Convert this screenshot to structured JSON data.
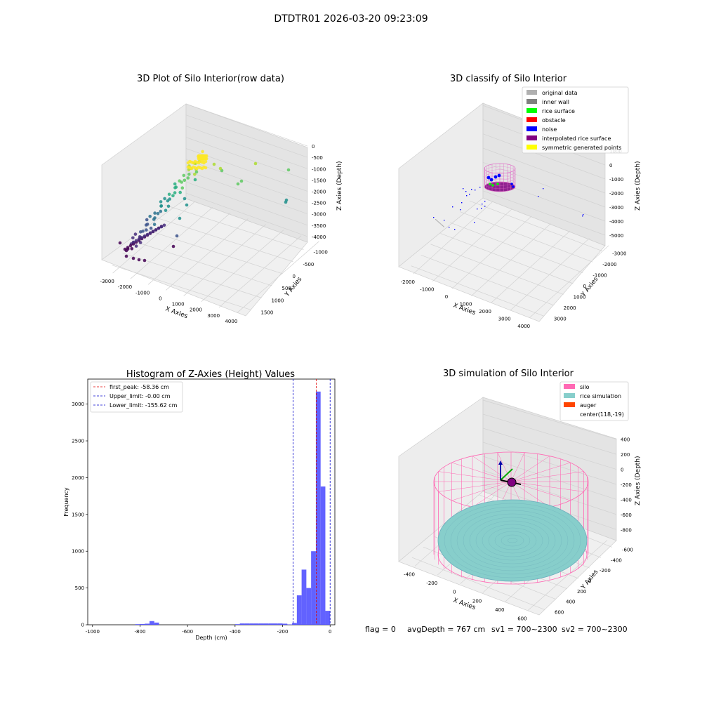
{
  "suptitle": "DTDTR01 2026-03-20 09:23:09",
  "footer": {
    "flag": "flag = 0",
    "avg": "avgDepth = 767 cm",
    "sv1": "sv1 = 700~2300",
    "sv2": "sv2 = 700~2300"
  },
  "colors": {
    "hist_bar": "#5555ff",
    "peak_line": "#e00000",
    "limit_line": "#0000cc",
    "silo": "#ff69b4",
    "rice": "#87cecb",
    "auger": "#ff4500"
  },
  "chart_data": [
    {
      "type": "scatter",
      "subtype": "3d",
      "title": "3D Plot of Silo Interior(row data)",
      "xlabel": "X Axies",
      "ylabel": "Y Axies",
      "zlabel": "Z Axies (Depth)",
      "xticks": [
        "-3000",
        "-2000",
        "-1000",
        "0",
        "1000",
        "2000",
        "3000",
        "4000"
      ],
      "yticks": [
        "-1000",
        "-500",
        "0",
        "500",
        "1000",
        "1500"
      ],
      "zticks": [
        "0",
        "-500",
        "-1000",
        "-1500",
        "-2000",
        "-2500",
        "-3000",
        "-3500",
        "-4000"
      ],
      "colormap": "viridis",
      "grid": true
    },
    {
      "type": "scatter",
      "subtype": "3d",
      "title": "3D classify of Silo Interior",
      "xlabel": "X Axies",
      "ylabel": "Y Axies",
      "zlabel": "Z Axies (Depth)",
      "xticks": [
        "-2000",
        "-1000",
        "0",
        "1000",
        "2000",
        "3000",
        "4000"
      ],
      "yticks": [
        "-3000",
        "-2000",
        "-1000",
        "0",
        "1000",
        "2000",
        "3000"
      ],
      "zticks": [
        "1000",
        "0",
        "-1000",
        "-2000",
        "-3000",
        "-4000",
        "-5000"
      ],
      "legend_position": "top-right",
      "legend": [
        {
          "label": "original data",
          "color": "#b0b0b0"
        },
        {
          "label": "inner wall",
          "color": "#808080"
        },
        {
          "label": "rice surface",
          "color": "#00ff00"
        },
        {
          "label": "obstacle",
          "color": "#ff0000"
        },
        {
          "label": "noise",
          "color": "#0000ff"
        },
        {
          "label": "interpolated rice surface",
          "color": "#800080"
        },
        {
          "label": "symmetric generated points",
          "color": "#ffff00"
        }
      ],
      "grid": true
    },
    {
      "type": "bar",
      "subtype": "histogram",
      "title": "Histogram of Z-Axies (Height) Values",
      "xlabel": "Depth (cm)",
      "ylabel": "Frequency",
      "xlim": [
        -1020,
        20
      ],
      "ylim": [
        0,
        3340
      ],
      "xticks": [
        -1000,
        -800,
        -600,
        -400,
        -200,
        0
      ],
      "yticks": [
        0,
        500,
        1000,
        1500,
        2000,
        2500,
        3000
      ],
      "bin_width": 20,
      "bins": [
        {
          "x": -820,
          "y": 8
        },
        {
          "x": -800,
          "y": 10
        },
        {
          "x": -780,
          "y": 15
        },
        {
          "x": -760,
          "y": 50
        },
        {
          "x": -740,
          "y": 30
        },
        {
          "x": -400,
          "y": 8
        },
        {
          "x": -380,
          "y": 18
        },
        {
          "x": -360,
          "y": 18
        },
        {
          "x": -340,
          "y": 18
        },
        {
          "x": -320,
          "y": 18
        },
        {
          "x": -300,
          "y": 18
        },
        {
          "x": -280,
          "y": 18
        },
        {
          "x": -260,
          "y": 18
        },
        {
          "x": -240,
          "y": 18
        },
        {
          "x": -220,
          "y": 18
        },
        {
          "x": -200,
          "y": 15
        },
        {
          "x": -180,
          "y": 5
        },
        {
          "x": -160,
          "y": 25
        },
        {
          "x": -140,
          "y": 400
        },
        {
          "x": -120,
          "y": 750
        },
        {
          "x": -100,
          "y": 500
        },
        {
          "x": -80,
          "y": 1000
        },
        {
          "x": -60,
          "y": 3170
        },
        {
          "x": -40,
          "y": 1880
        },
        {
          "x": -20,
          "y": 190
        }
      ],
      "vlines": [
        {
          "label": "first_peak: -58.36 cm",
          "x": -58.36,
          "role": "peak"
        },
        {
          "label": "Upper_limit: -0.00 cm",
          "x": 0,
          "role": "limit"
        },
        {
          "label": "Lower_limit: -155.62 cm",
          "x": -155.62,
          "role": "limit"
        }
      ],
      "legend_position": "top-left"
    },
    {
      "type": "scatter",
      "subtype": "3d-wireframe",
      "title": "3D simulation of Silo Interior",
      "xlabel": "X Axies",
      "ylabel": "Y Axies",
      "zlabel": "Z Axies (Depth)",
      "xticks": [
        "-400",
        "-200",
        "0",
        "200",
        "400",
        "600"
      ],
      "yticks": [
        "-600",
        "-400",
        "-200",
        "0",
        "200",
        "400",
        "600"
      ],
      "zticks": [
        "400",
        "200",
        "0",
        "-200",
        "-400",
        "-600",
        "-800"
      ],
      "legend_position": "top-right",
      "legend": [
        {
          "label": "silo",
          "color": "#ff69b4"
        },
        {
          "label": "rice simulation",
          "color": "#87cecb"
        },
        {
          "label": "auger",
          "color": "#ff4500"
        },
        {
          "label": "center(118,-19)",
          "color": ""
        }
      ],
      "grid": true
    }
  ]
}
